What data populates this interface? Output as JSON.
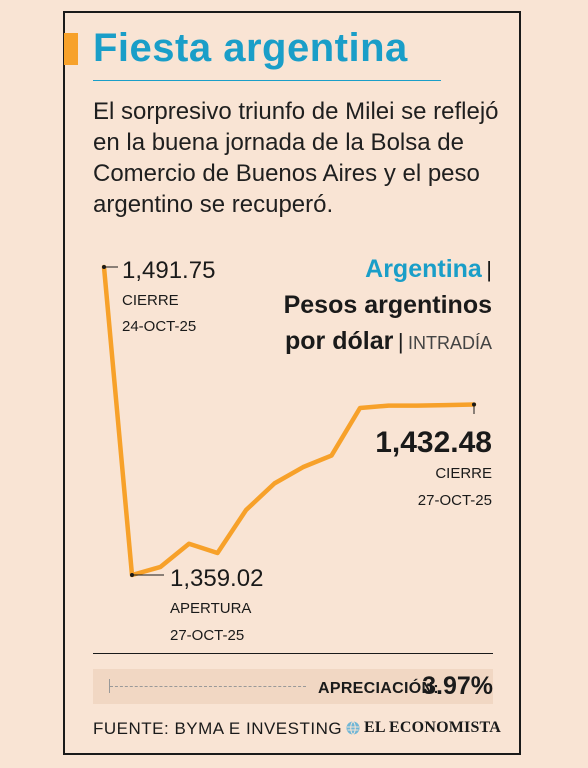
{
  "header": {
    "title": "Fiesta argentina",
    "subtitle": "El sorpresivo triunfo de Milei se reflejó en la buena jornada de la Bolsa de Comercio de Buenos Aires y el peso argentino se recuperó."
  },
  "chart_head": {
    "country": "Argentina",
    "separator": "|",
    "measure_line1": "Pesos argentinos",
    "measure_line2": "por dólar",
    "qualifier": "INTRADÍA"
  },
  "annotations": {
    "first_value": "1,491.75",
    "first_kind": "CIERRE",
    "first_date": "24-OCT-25",
    "min_value": "1,359.02",
    "min_kind": "APERTURA",
    "min_date": "27-OCT-25",
    "last_value": "1,432.48",
    "last_kind": "CIERRE",
    "last_date": "27-OCT-25"
  },
  "footer": {
    "appreciation_label": "APRECIACIÓN:",
    "appreciation_value": "3.97%",
    "source": "FUENTE: BYMA E INVESTING",
    "brand": "EL ECONOMISTA"
  },
  "colors": {
    "accent": "#f7a12a",
    "title_blue": "#1a9ec8",
    "background": "#f9e4d4"
  },
  "chart_data": {
    "type": "line",
    "title": "Pesos argentinos por dólar",
    "series": [
      {
        "values": [
          1491.75,
          1359.02,
          1362.5,
          1372.5,
          1368.5,
          1387.0,
          1398.5,
          1405.5,
          1410.5,
          1431.0,
          1432.0,
          1432.0,
          1432.2,
          1432.48
        ]
      }
    ],
    "ylim": [
      1359.02,
      1491.75
    ],
    "grid": false,
    "legend": "none"
  }
}
